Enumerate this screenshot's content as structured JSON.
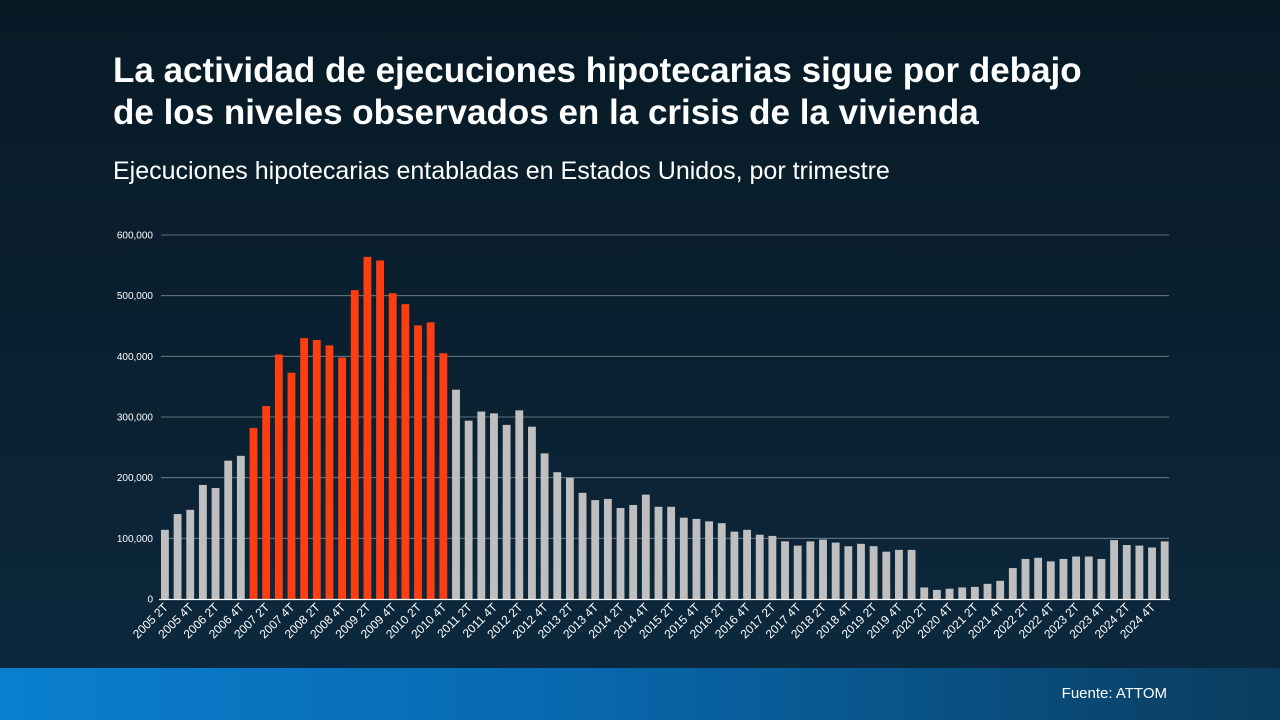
{
  "header": {
    "title_line1": "La actividad de ejecuciones hipotecarias sigue por debajo",
    "title_line2": "de los niveles observados en la crisis de la vivienda",
    "subtitle": "Ejecuciones hipotecarias entabladas en Estados Unidos, por trimestre"
  },
  "footer": {
    "source": "Fuente: ATTOM"
  },
  "colors": {
    "highlight": "#fe3d11",
    "normal": "#bfbfbf",
    "gridline": "#7a8a96"
  },
  "chart_data": {
    "type": "bar",
    "title": "",
    "xlabel": "",
    "ylabel": "",
    "ylim": [
      0,
      600000
    ],
    "yticks": [
      "0",
      "100,000",
      "200,000",
      "300,000",
      "400,000",
      "500,000",
      "600,000"
    ],
    "grid": true,
    "categories": [
      "2005 2T",
      "2005 3T",
      "2005 4T",
      "2006 1T",
      "2006 2T",
      "2006 3T",
      "2006 4T",
      "2007 1T",
      "2007 2T",
      "2007 3T",
      "2007 4T",
      "2008 1T",
      "2008 2T",
      "2008 3T",
      "2008 4T",
      "2009 1T",
      "2009 2T",
      "2009 3T",
      "2009 4T",
      "2010 1T",
      "2010 2T",
      "2010 3T",
      "2010 4T",
      "2011 1T",
      "2011 2T",
      "2011 3T",
      "2011 4T",
      "2012 1T",
      "2012 2T",
      "2012 3T",
      "2012 4T",
      "2013 1T",
      "2013 2T",
      "2013 3T",
      "2013 4T",
      "2014 1T",
      "2014 2T",
      "2014 3T",
      "2014 4T",
      "2015 1T",
      "2015 2T",
      "2015 3T",
      "2015 4T",
      "2016 1T",
      "2016 2T",
      "2016 3T",
      "2016 4T",
      "2017 1T",
      "2017 2T",
      "2017 3T",
      "2017 4T",
      "2018 1T",
      "2018 2T",
      "2018 3T",
      "2018 4T",
      "2019 1T",
      "2019 2T",
      "2019 3T",
      "2019 4T",
      "2020 1T",
      "2020 2T",
      "2020 3T",
      "2020 4T",
      "2021 1T",
      "2021 2T",
      "2021 3T",
      "2021 4T",
      "2022 1T",
      "2022 2T",
      "2022 3T",
      "2022 4T",
      "2023 1T",
      "2023 2T",
      "2023 3T",
      "2023 4T",
      "2024 1T",
      "2024 2T",
      "2024 3T",
      "2024 4T",
      "2025 1T"
    ],
    "visible_tick_labels": [
      "2005 2T",
      "2005 4T",
      "2006 2T",
      "2006 4T",
      "2007 2T",
      "2007 4T",
      "2008 2T",
      "2008 4T",
      "2009 2T",
      "2009 4T",
      "2010 2T",
      "2010 4T",
      "2011 2T",
      "2011 4T",
      "2012 2T",
      "2012 4T",
      "2013 2T",
      "2013 4T",
      "2014 2T",
      "2014 4T",
      "2015 2T",
      "2015 4T",
      "2016 2T",
      "2016 4T",
      "2017 2T",
      "2017 4T",
      "2018 2T",
      "2018 4T",
      "2019 2T",
      "2019 4T",
      "2020 2T",
      "2020 4T",
      "2021 2T",
      "2021 4T",
      "2022 2T",
      "2022 4T",
      "2023 2T",
      "2023 4T",
      "2024 2T",
      "2024 4T"
    ],
    "values": [
      114000,
      140000,
      147000,
      188000,
      183000,
      228000,
      236000,
      282000,
      318000,
      403000,
      373000,
      430000,
      427000,
      418000,
      398000,
      509000,
      564000,
      558000,
      504000,
      486000,
      451000,
      456000,
      405000,
      345000,
      294000,
      309000,
      306000,
      287000,
      311000,
      284000,
      240000,
      209000,
      200000,
      175000,
      163000,
      165000,
      150000,
      155000,
      172000,
      152000,
      152000,
      134000,
      132000,
      128000,
      125000,
      111000,
      114000,
      106000,
      104000,
      95000,
      88000,
      95000,
      98000,
      93000,
      87000,
      91000,
      87000,
      78000,
      81000,
      81000,
      19000,
      15000,
      17000,
      19000,
      20000,
      25000,
      30000,
      51000,
      66000,
      68000,
      62000,
      66000,
      70000,
      70000,
      66000,
      97000,
      89000,
      88000,
      85000,
      95000
    ],
    "highlight_range": [
      "2007 1T",
      "2010 4T"
    ]
  }
}
